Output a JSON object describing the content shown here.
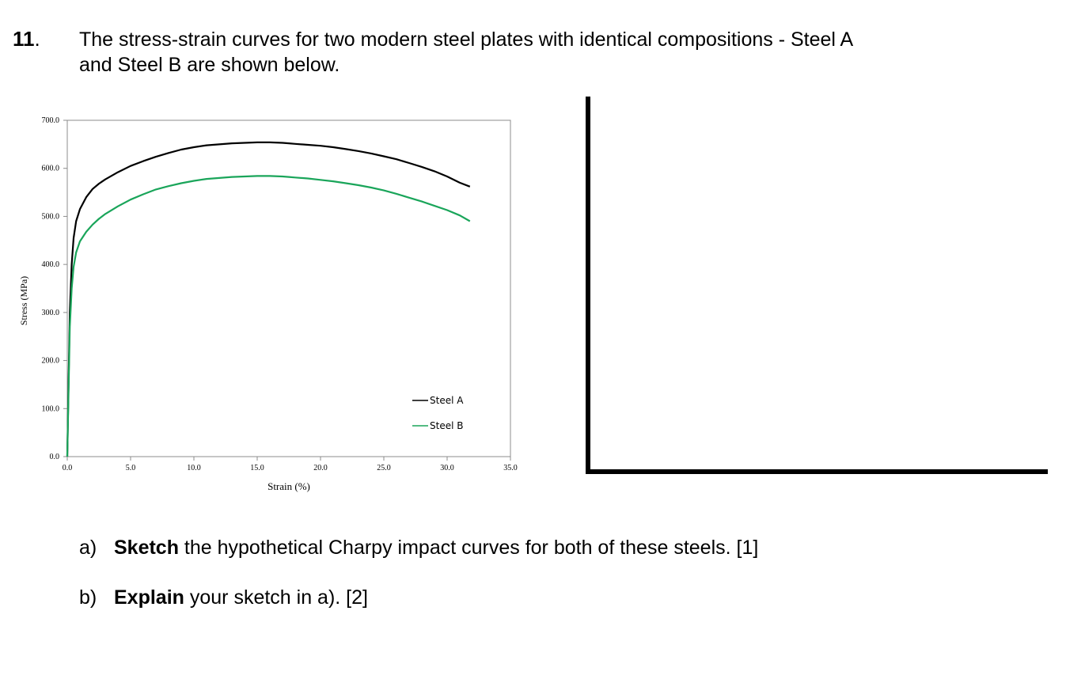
{
  "question": {
    "number": "11",
    "number_suffix": ".",
    "stem_line1": "The stress-strain curves for two modern steel plates with identical compositions - Steel A",
    "stem_line2": "and Steel B are shown below."
  },
  "chart_data": {
    "type": "line",
    "xlabel": "Strain (%)",
    "ylabel": "Stress (MPa)",
    "xlim": [
      0,
      35
    ],
    "ylim": [
      0,
      700
    ],
    "x_ticks": [
      "0.0",
      "5.0",
      "10.0",
      "15.0",
      "20.0",
      "25.0",
      "30.0",
      "35.0"
    ],
    "y_ticks": [
      "0.0",
      "100.0",
      "200.0",
      "300.0",
      "400.0",
      "500.0",
      "600.0",
      "700.0"
    ],
    "grid": false,
    "legend_position": "bottom-right",
    "series": [
      {
        "name": "Steel A",
        "color": "#000000",
        "x": [
          0,
          0.2,
          0.35,
          0.5,
          0.7,
          1.0,
          1.5,
          2.0,
          2.5,
          3.0,
          4.0,
          5.0,
          6.0,
          7.0,
          8.0,
          9.0,
          10.0,
          11.0,
          12.0,
          13.0,
          14.0,
          15.0,
          16.0,
          17.0,
          17.5,
          18.0,
          19.0,
          20.0,
          21.0,
          22.0,
          23.0,
          24.0,
          25.0,
          26.0,
          27.0,
          28.0,
          29.0,
          30.0,
          31.0,
          31.8
        ],
        "y": [
          0,
          300,
          400,
          455,
          490,
          515,
          540,
          557,
          568,
          577,
          592,
          605,
          615,
          624,
          632,
          639,
          644,
          648,
          650,
          652,
          653,
          654,
          654,
          653,
          652,
          651,
          649,
          647,
          644,
          640,
          636,
          631,
          625,
          619,
          611,
          603,
          594,
          583,
          570,
          562
        ]
      },
      {
        "name": "Steel B",
        "color": "#1aa55a",
        "x": [
          0,
          0.2,
          0.35,
          0.5,
          0.7,
          1.0,
          1.5,
          2.0,
          2.5,
          3.0,
          4.0,
          5.0,
          6.0,
          7.0,
          8.0,
          9.0,
          10.0,
          11.0,
          12.0,
          13.0,
          14.0,
          15.0,
          16.0,
          17.0,
          17.5,
          18.0,
          19.0,
          20.0,
          21.0,
          22.0,
          23.0,
          24.0,
          25.0,
          26.0,
          27.0,
          28.0,
          29.0,
          30.0,
          31.0,
          31.8
        ],
        "y": [
          0,
          270,
          350,
          395,
          425,
          448,
          468,
          483,
          495,
          505,
          521,
          535,
          546,
          556,
          563,
          569,
          574,
          578,
          580,
          582,
          583,
          584,
          584,
          583,
          582,
          581,
          579,
          576,
          573,
          569,
          565,
          560,
          554,
          547,
          539,
          531,
          522,
          513,
          502,
          490
        ]
      }
    ]
  },
  "sketch_area": {
    "description_visible": ""
  },
  "parts": [
    {
      "label": "a)",
      "verb": "Sketch",
      "rest": " the hypothetical Charpy impact curves for both of these steels. [1]"
    },
    {
      "label": "b)",
      "verb": "Explain",
      "rest": " your sketch in a). [2]"
    }
  ]
}
